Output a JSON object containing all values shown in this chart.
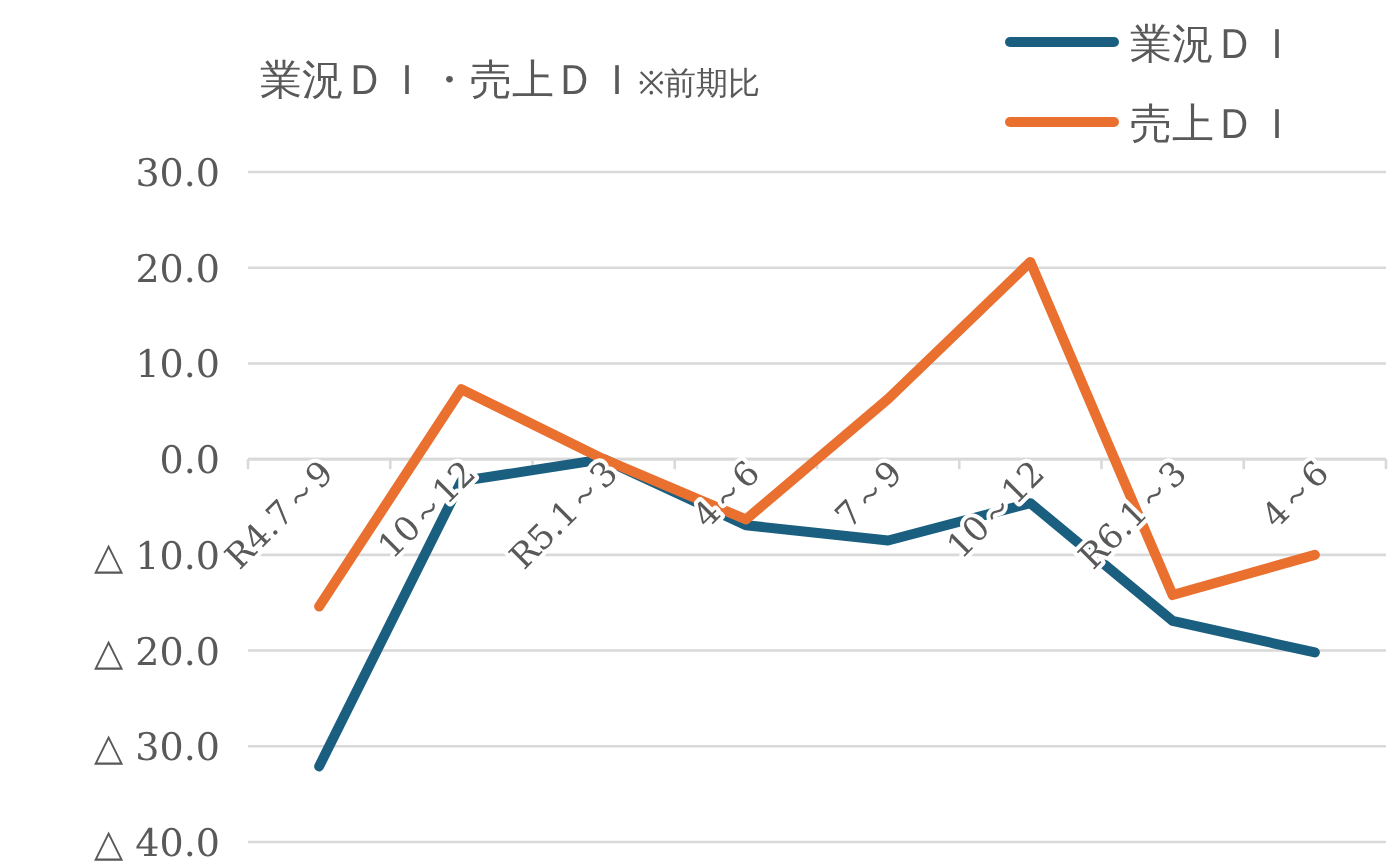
{
  "chart_data": {
    "type": "line",
    "title": "業況ＤＩ・売上ＤＩ",
    "subtitle": "※前期比",
    "categories": [
      "R4.7～9",
      "10～12",
      "R5.1～3",
      "4～6",
      "7～9",
      "10～12",
      "R6.1～3",
      "4～6"
    ],
    "series": [
      {
        "name": "業況ＤＩ",
        "color": "#1b5f80",
        "values": [
          -32.1,
          -2.3,
          0.0,
          -6.9,
          -8.5,
          -4.6,
          -16.9,
          -20.2
        ]
      },
      {
        "name": "売上ＤＩ",
        "color": "#ea7030",
        "values": [
          -15.4,
          7.3,
          0.0,
          -6.3,
          6.3,
          20.6,
          -14.2,
          -10.0
        ]
      }
    ],
    "ylim": [
      -40,
      30
    ],
    "yticks": [
      {
        "value": 30,
        "label": "30.0"
      },
      {
        "value": 20,
        "label": "20.0"
      },
      {
        "value": 10,
        "label": "10.0"
      },
      {
        "value": 0,
        "label": "0.0"
      },
      {
        "value": -10,
        "label": "△ 10.0"
      },
      {
        "value": -20,
        "label": "△ 20.0"
      },
      {
        "value": -30,
        "label": "△ 30.0"
      },
      {
        "value": -40,
        "label": "△ 40.0"
      }
    ],
    "grid": "y",
    "legend": "top right",
    "marker": "none",
    "line_style": "solid"
  }
}
